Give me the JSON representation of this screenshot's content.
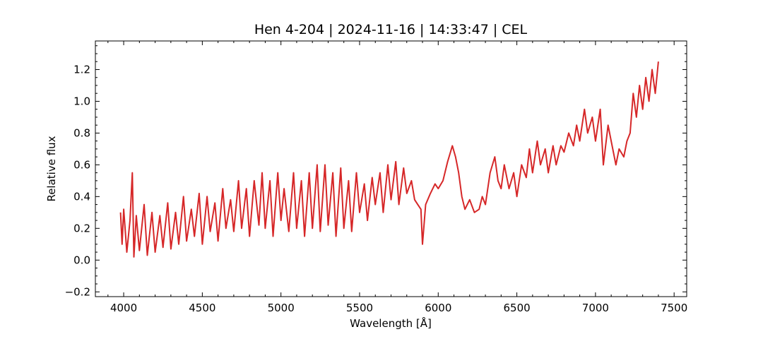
{
  "chart_data": {
    "type": "line",
    "title": "Hen 4-204 | 2024-11-16 | 14:33:47 | CEL",
    "xlabel": "Wavelength [Å]",
    "ylabel": "Relative flux",
    "xlim": [
      3820,
      7580
    ],
    "ylim": [
      -0.23,
      1.38
    ],
    "grid": false,
    "legend": "none",
    "line_color": "#d62728",
    "x_ticks": [
      4000,
      4500,
      5000,
      5500,
      6000,
      6500,
      7000,
      7500
    ],
    "x_tick_labels": [
      "4000",
      "4500",
      "5000",
      "5500",
      "6000",
      "6500",
      "7000",
      "7500"
    ],
    "y_ticks": [
      -0.2,
      0.0,
      0.2,
      0.4,
      0.6,
      0.8,
      1.0,
      1.2
    ],
    "y_tick_labels": [
      "−0.2",
      "0.0",
      "0.2",
      "0.4",
      "0.6",
      "0.8",
      "1.0",
      "1.2"
    ],
    "series": [
      {
        "x": [
          3980,
          3990,
          4000,
          4020,
          4040,
          4055,
          4065,
          4080,
          4100,
          4130,
          4150,
          4180,
          4200,
          4230,
          4250,
          4280,
          4300,
          4330,
          4350,
          4380,
          4400,
          4430,
          4450,
          4480,
          4500,
          4530,
          4550,
          4580,
          4600,
          4630,
          4650,
          4680,
          4700,
          4730,
          4750,
          4780,
          4800,
          4830,
          4860,
          4880,
          4900,
          4930,
          4950,
          4980,
          5000,
          5020,
          5050,
          5080,
          5100,
          5130,
          5150,
          5180,
          5200,
          5230,
          5250,
          5280,
          5300,
          5330,
          5350,
          5380,
          5400,
          5430,
          5450,
          5480,
          5500,
          5530,
          5550,
          5580,
          5600,
          5630,
          5650,
          5680,
          5700,
          5730,
          5750,
          5780,
          5800,
          5830,
          5850,
          5870,
          5890,
          5900,
          5920,
          5950,
          5980,
          6000,
          6030,
          6060,
          6090,
          6110,
          6130,
          6150,
          6170,
          6200,
          6230,
          6260,
          6280,
          6300,
          6330,
          6360,
          6380,
          6400,
          6420,
          6450,
          6480,
          6500,
          6530,
          6560,
          6580,
          6600,
          6630,
          6650,
          6680,
          6700,
          6730,
          6750,
          6780,
          6800,
          6830,
          6860,
          6880,
          6900,
          6930,
          6950,
          6980,
          7000,
          7030,
          7050,
          7080,
          7100,
          7130,
          7150,
          7180,
          7200,
          7220,
          7240,
          7260,
          7280,
          7300,
          7320,
          7340,
          7360,
          7380,
          7400
        ],
        "y": [
          0.3,
          0.1,
          0.32,
          0.05,
          0.25,
          0.55,
          0.02,
          0.28,
          0.06,
          0.35,
          0.03,
          0.3,
          0.05,
          0.28,
          0.08,
          0.36,
          0.07,
          0.3,
          0.1,
          0.4,
          0.12,
          0.32,
          0.15,
          0.42,
          0.1,
          0.4,
          0.18,
          0.36,
          0.12,
          0.45,
          0.2,
          0.38,
          0.18,
          0.5,
          0.2,
          0.45,
          0.15,
          0.5,
          0.22,
          0.55,
          0.2,
          0.5,
          0.15,
          0.55,
          0.25,
          0.45,
          0.18,
          0.55,
          0.2,
          0.5,
          0.15,
          0.55,
          0.2,
          0.6,
          0.18,
          0.6,
          0.22,
          0.55,
          0.15,
          0.58,
          0.2,
          0.5,
          0.18,
          0.55,
          0.3,
          0.48,
          0.25,
          0.52,
          0.35,
          0.55,
          0.3,
          0.6,
          0.38,
          0.62,
          0.35,
          0.58,
          0.42,
          0.5,
          0.38,
          0.35,
          0.32,
          0.1,
          0.35,
          0.42,
          0.48,
          0.45,
          0.5,
          0.62,
          0.72,
          0.65,
          0.55,
          0.4,
          0.32,
          0.38,
          0.3,
          0.32,
          0.4,
          0.35,
          0.55,
          0.65,
          0.5,
          0.45,
          0.6,
          0.45,
          0.55,
          0.4,
          0.6,
          0.52,
          0.7,
          0.55,
          0.75,
          0.6,
          0.7,
          0.55,
          0.72,
          0.6,
          0.72,
          0.68,
          0.8,
          0.72,
          0.85,
          0.75,
          0.95,
          0.8,
          0.9,
          0.75,
          0.95,
          0.6,
          0.85,
          0.75,
          0.6,
          0.7,
          0.65,
          0.75,
          0.8,
          1.05,
          0.9,
          1.1,
          0.95,
          1.15,
          1.0,
          1.2,
          1.05,
          1.25
        ]
      }
    ]
  }
}
